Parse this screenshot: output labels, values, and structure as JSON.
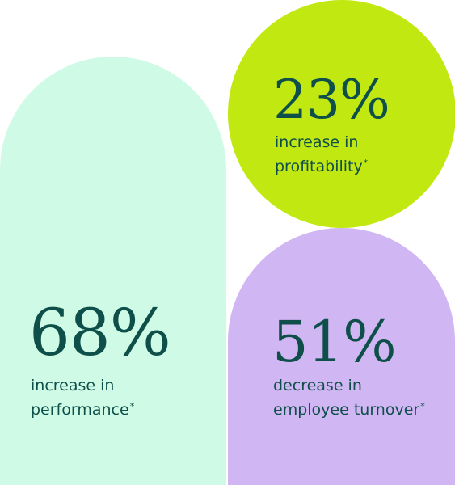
{
  "colors": {
    "text": "#0f4f4a",
    "performance_bg": "#cffbe6",
    "profitability_bg": "#c2e812",
    "turnover_bg": "#d1b6f4"
  },
  "stats": {
    "performance": {
      "value": "68%",
      "caption_line1": "increase in",
      "caption_line2": "performance",
      "footnote_mark": "*"
    },
    "profitability": {
      "value": "23%",
      "caption_line1": "increase in",
      "caption_line2": "profitability",
      "footnote_mark": "*"
    },
    "turnover": {
      "value": "51%",
      "caption_line1": "decrease in",
      "caption_line2": "employee turnover",
      "footnote_mark": "*"
    }
  }
}
